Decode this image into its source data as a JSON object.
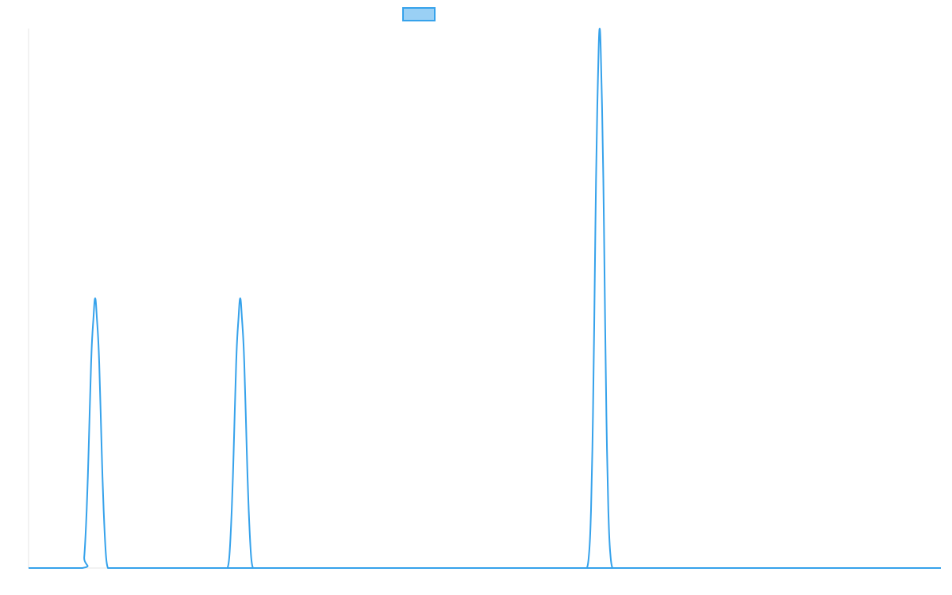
{
  "chart_data": {
    "type": "line",
    "title": "",
    "xlabel": "",
    "ylabel": "",
    "xlim": [
      0,
      1000
    ],
    "ylim": [
      0,
      100
    ],
    "grid": false,
    "legend": {
      "placement": "top-center",
      "entries": [
        {
          "label": "",
          "color": "#36a2eb",
          "fill": "#9ad0f5"
        }
      ]
    },
    "series": [
      {
        "color": "#36a2eb",
        "x": [
          0,
          59,
          61,
          63,
          65,
          67,
          69,
          71,
          73,
          75,
          77,
          79,
          81,
          83,
          85,
          87,
          89,
          91,
          93,
          95,
          97,
          99,
          216,
          218,
          220,
          222,
          224,
          226,
          228,
          230,
          232,
          234,
          236,
          238,
          240,
          242,
          244,
          246,
          248,
          250,
          252,
          254,
          256,
          610,
          612,
          614,
          616,
          618,
          620,
          622,
          624,
          626,
          628,
          630,
          632,
          634,
          636,
          638,
          640,
          642,
          644,
          646,
          648,
          650,
          652,
          1000
        ],
        "values": [
          0,
          0,
          2,
          8,
          17,
          29,
          40,
          46,
          50,
          46,
          40,
          29,
          17,
          8,
          2,
          0,
          0,
          0,
          0,
          0,
          0,
          0,
          0,
          0,
          2,
          8,
          17,
          29,
          40,
          46,
          50,
          46,
          40,
          29,
          17,
          8,
          2,
          0,
          0,
          0,
          0,
          0,
          0,
          0,
          0,
          2,
          8,
          22,
          45,
          72,
          90,
          100,
          90,
          72,
          45,
          22,
          8,
          2,
          0,
          0,
          0,
          0,
          0,
          0,
          0,
          0
        ]
      }
    ]
  }
}
